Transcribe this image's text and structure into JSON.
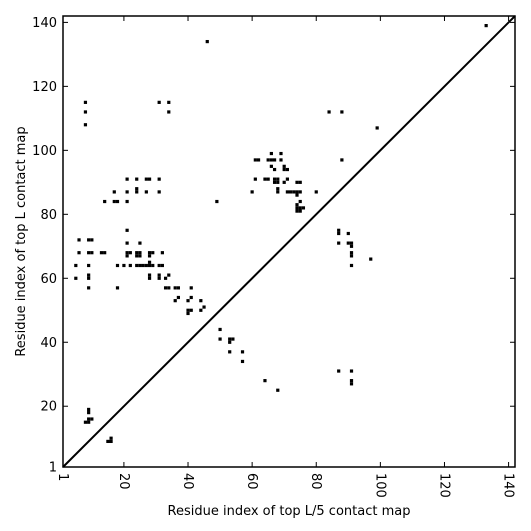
{
  "chart_data": {
    "type": "scatter",
    "xlabel": "Residue index of top L/5 contact map",
    "ylabel": "Residue index of top L contact map",
    "xlim": [
      1,
      142
    ],
    "ylim": [
      1,
      142
    ],
    "x_ticks": [
      1,
      20,
      40,
      60,
      80,
      100,
      120,
      140
    ],
    "y_ticks": [
      1,
      20,
      40,
      60,
      80,
      100,
      120,
      140
    ],
    "diagonal": true,
    "grid": false,
    "marker_color": "#000000",
    "points": [
      [
        5,
        60
      ],
      [
        5,
        64
      ],
      [
        6,
        68
      ],
      [
        6,
        72
      ],
      [
        8,
        108
      ],
      [
        8,
        112
      ],
      [
        8,
        115
      ],
      [
        9,
        57
      ],
      [
        9,
        60
      ],
      [
        9,
        61
      ],
      [
        9,
        64
      ],
      [
        9,
        68
      ],
      [
        9,
        72
      ],
      [
        10,
        72
      ],
      [
        10,
        68
      ],
      [
        8,
        15
      ],
      [
        9,
        15
      ],
      [
        9,
        16
      ],
      [
        9,
        18
      ],
      [
        9,
        19
      ],
      [
        10,
        16
      ],
      [
        15,
        9
      ],
      [
        16,
        9
      ],
      [
        16,
        10
      ],
      [
        13,
        68
      ],
      [
        14,
        68
      ],
      [
        14,
        84
      ],
      [
        17,
        87
      ],
      [
        17,
        84
      ],
      [
        18,
        84
      ],
      [
        18,
        64
      ],
      [
        18,
        57
      ],
      [
        20,
        64
      ],
      [
        21,
        75
      ],
      [
        21,
        71
      ],
      [
        21,
        68
      ],
      [
        21,
        67
      ],
      [
        21,
        87
      ],
      [
        21,
        91
      ],
      [
        21,
        84
      ],
      [
        22,
        64
      ],
      [
        22,
        68
      ],
      [
        24,
        64
      ],
      [
        24,
        67
      ],
      [
        24,
        68
      ],
      [
        24,
        87
      ],
      [
        24,
        88
      ],
      [
        24,
        91
      ],
      [
        25,
        64
      ],
      [
        25,
        67
      ],
      [
        25,
        68
      ],
      [
        25,
        71
      ],
      [
        26,
        64
      ],
      [
        27,
        87
      ],
      [
        27,
        91
      ],
      [
        28,
        91
      ],
      [
        27,
        64
      ],
      [
        28,
        60
      ],
      [
        28,
        61
      ],
      [
        28,
        64
      ],
      [
        28,
        65
      ],
      [
        28,
        67
      ],
      [
        28,
        68
      ],
      [
        29,
        64
      ],
      [
        29,
        68
      ],
      [
        31,
        60
      ],
      [
        31,
        61
      ],
      [
        31,
        64
      ],
      [
        31,
        87
      ],
      [
        31,
        91
      ],
      [
        31,
        115
      ],
      [
        32,
        64
      ],
      [
        32,
        68
      ],
      [
        33,
        60
      ],
      [
        33,
        57
      ],
      [
        34,
        57
      ],
      [
        34,
        61
      ],
      [
        34,
        112
      ],
      [
        34,
        115
      ],
      [
        36,
        53
      ],
      [
        36,
        57
      ],
      [
        37,
        54
      ],
      [
        37,
        57
      ],
      [
        40,
        49
      ],
      [
        40,
        50
      ],
      [
        40,
        53
      ],
      [
        41,
        54
      ],
      [
        41,
        57
      ],
      [
        41,
        50
      ],
      [
        44,
        50
      ],
      [
        44,
        53
      ],
      [
        45,
        51
      ],
      [
        46,
        134
      ],
      [
        49,
        84
      ],
      [
        50,
        41
      ],
      [
        50,
        44
      ],
      [
        53,
        37
      ],
      [
        53,
        40
      ],
      [
        53,
        41
      ],
      [
        54,
        41
      ],
      [
        57,
        34
      ],
      [
        57,
        37
      ],
      [
        60,
        87
      ],
      [
        61,
        91
      ],
      [
        61,
        97
      ],
      [
        62,
        97
      ],
      [
        64,
        28
      ],
      [
        64,
        91
      ],
      [
        65,
        91
      ],
      [
        65,
        97
      ],
      [
        66,
        95
      ],
      [
        66,
        97
      ],
      [
        66,
        99
      ],
      [
        67,
        90
      ],
      [
        67,
        91
      ],
      [
        67,
        94
      ],
      [
        67,
        97
      ],
      [
        68,
        25
      ],
      [
        68,
        87
      ],
      [
        68,
        88
      ],
      [
        68,
        90
      ],
      [
        68,
        91
      ],
      [
        69,
        97
      ],
      [
        69,
        99
      ],
      [
        70,
        90
      ],
      [
        70,
        94
      ],
      [
        70,
        95
      ],
      [
        71,
        87
      ],
      [
        71,
        91
      ],
      [
        71,
        94
      ],
      [
        72,
        87
      ],
      [
        73,
        87
      ],
      [
        74,
        81
      ],
      [
        74,
        82
      ],
      [
        74,
        83
      ],
      [
        74,
        86
      ],
      [
        74,
        87
      ],
      [
        74,
        90
      ],
      [
        75,
        81
      ],
      [
        75,
        82
      ],
      [
        75,
        84
      ],
      [
        75,
        87
      ],
      [
        75,
        90
      ],
      [
        76,
        82
      ],
      [
        80,
        87
      ],
      [
        84,
        112
      ],
      [
        87,
        31
      ],
      [
        87,
        71
      ],
      [
        87,
        74
      ],
      [
        87,
        75
      ],
      [
        88,
        97
      ],
      [
        88,
        112
      ],
      [
        90,
        71
      ],
      [
        90,
        74
      ],
      [
        91,
        27
      ],
      [
        91,
        28
      ],
      [
        91,
        31
      ],
      [
        91,
        64
      ],
      [
        91,
        67
      ],
      [
        91,
        68
      ],
      [
        91,
        70
      ],
      [
        91,
        71
      ],
      [
        97,
        66
      ],
      [
        99,
        107
      ],
      [
        133,
        139
      ]
    ]
  }
}
